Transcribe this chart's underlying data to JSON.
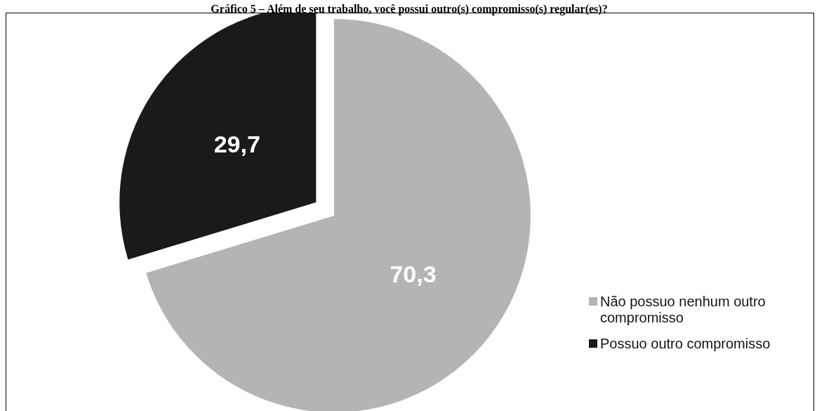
{
  "chart_data": {
    "type": "pie",
    "title": "Gráfico 5 – Além de seu trabalho, você possui outro(s) compromisso(s) regular(es)?",
    "categories": [
      "Não possuo nenhum outro compromisso",
      "Possuo outro compromisso"
    ],
    "values": [
      70.3,
      29.7
    ],
    "colors": [
      "#b3b5b4",
      "#1a1a1a"
    ],
    "value_labels": [
      "70,3",
      "29,7"
    ],
    "legend": "right"
  }
}
